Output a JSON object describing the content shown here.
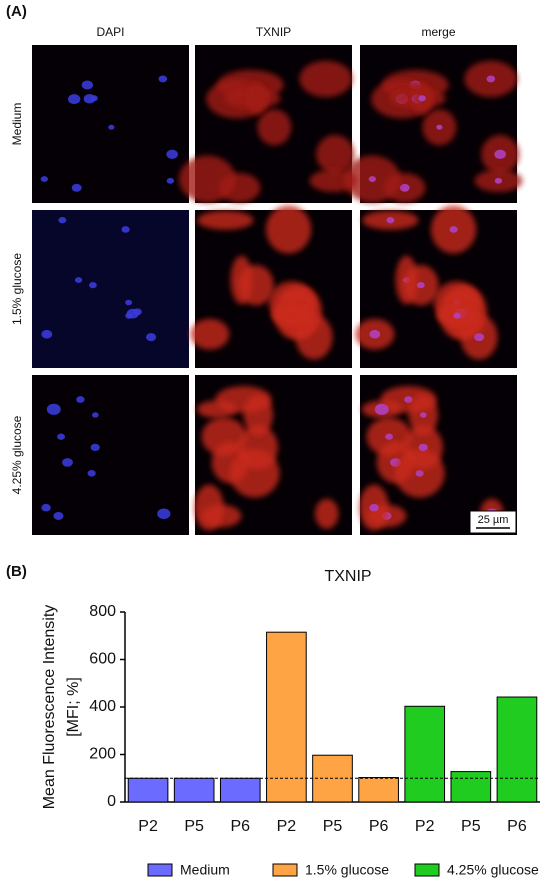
{
  "figure": {
    "panel_a_label": "(A)",
    "columns": [
      "DAPI",
      "TXNIP",
      "merge"
    ],
    "rows": [
      "Medium",
      "1.5% glucose",
      "4.25% glucose"
    ],
    "scale_bar": "25 µm",
    "panel_b_label": "(B)"
  },
  "chart_data": {
    "type": "bar",
    "title": "TXNIP",
    "y_label": [
      "Mean Fluorescence Intensity",
      "[MFI; %]"
    ],
    "categories": [
      "P2",
      "P5",
      "P6"
    ],
    "series": [
      {
        "name": "Medium",
        "color": "#6b6bff",
        "values": [
          100,
          100,
          100
        ]
      },
      {
        "name": "1.5% glucose",
        "color": "#ffa445",
        "values": [
          715,
          197,
          103
        ]
      },
      {
        "name": "4.25% glucose",
        "color": "#1fcc1f",
        "values": [
          403,
          128,
          442
        ]
      }
    ],
    "ylim": [
      0,
      800
    ],
    "yticks": [
      0,
      200,
      400,
      600,
      800
    ],
    "reference_line": 100
  }
}
